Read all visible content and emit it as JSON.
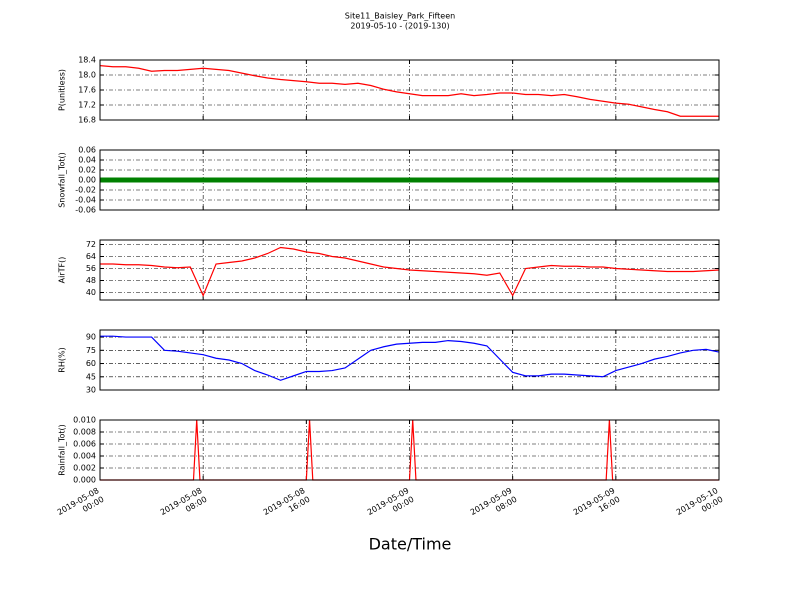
{
  "title": "Site11_Baisley_Park_Fifteen",
  "subtitle": "2019-05-10 - (2019-130)",
  "xlabel": "Date/Time",
  "chart_data": [
    {
      "type": "line",
      "ylabel": "P(unitless)",
      "color": "#ff0000",
      "grid": true,
      "x": [
        "2019-05-08 00:00",
        "2019-05-08 01:00",
        "2019-05-08 02:00",
        "2019-05-08 03:00",
        "2019-05-08 04:00",
        "2019-05-08 05:00",
        "2019-05-08 06:00",
        "2019-05-08 07:00",
        "2019-05-08 08:00",
        "2019-05-08 09:00",
        "2019-05-08 10:00",
        "2019-05-08 11:00",
        "2019-05-08 12:00",
        "2019-05-08 13:00",
        "2019-05-08 14:00",
        "2019-05-08 15:00",
        "2019-05-08 16:00",
        "2019-05-08 17:00",
        "2019-05-08 18:00",
        "2019-05-08 19:00",
        "2019-05-08 20:00",
        "2019-05-08 21:00",
        "2019-05-08 22:00",
        "2019-05-08 23:00",
        "2019-05-09 00:00",
        "2019-05-09 01:00",
        "2019-05-09 02:00",
        "2019-05-09 03:00",
        "2019-05-09 04:00",
        "2019-05-09 05:00",
        "2019-05-09 06:00",
        "2019-05-09 07:00",
        "2019-05-09 08:00",
        "2019-05-09 09:00",
        "2019-05-09 10:00",
        "2019-05-09 11:00",
        "2019-05-09 12:00",
        "2019-05-09 13:00",
        "2019-05-09 14:00",
        "2019-05-09 15:00",
        "2019-05-09 16:00",
        "2019-05-09 17:00",
        "2019-05-09 18:00",
        "2019-05-09 19:00",
        "2019-05-09 20:00",
        "2019-05-09 21:00",
        "2019-05-09 22:00",
        "2019-05-09 23:00",
        "2019-05-10 00:00"
      ],
      "values": [
        18.25,
        18.22,
        18.22,
        18.18,
        18.1,
        18.12,
        18.12,
        18.15,
        18.18,
        18.15,
        18.12,
        18.05,
        17.98,
        17.92,
        17.88,
        17.85,
        17.82,
        17.78,
        17.78,
        17.75,
        17.78,
        17.72,
        17.62,
        17.55,
        17.5,
        17.45,
        17.45,
        17.45,
        17.5,
        17.45,
        17.48,
        17.52,
        17.52,
        17.48,
        17.48,
        17.45,
        17.48,
        17.42,
        17.35,
        17.3,
        17.25,
        17.22,
        17.15,
        17.08,
        17.02,
        16.9,
        16.9,
        16.9,
        16.9
      ],
      "xlim": [
        "2019-05-08 00:00",
        "2019-05-10 00:00"
      ],
      "xticks": [
        "2019-05-08 00:00",
        "2019-05-08 08:00",
        "2019-05-08 16:00",
        "2019-05-09 00:00",
        "2019-05-09 08:00",
        "2019-05-09 16:00",
        "2019-05-10 00:00"
      ],
      "ylim": [
        16.8,
        18.4
      ],
      "yticks": [
        16.8,
        17.2,
        17.6,
        {
          "value": 18,
          "label": "18.0"
        },
        18.4
      ]
    },
    {
      "type": "line",
      "ylabel": "Snowfall_Tot()",
      "color": "#008000",
      "linewidth": 5,
      "grid": true,
      "x": [
        "2019-05-08 00:00",
        "2019-05-08 01:00",
        "2019-05-08 02:00",
        "2019-05-08 03:00",
        "2019-05-08 04:00",
        "2019-05-08 05:00",
        "2019-05-08 06:00",
        "2019-05-08 07:00",
        "2019-05-08 08:00",
        "2019-05-08 09:00",
        "2019-05-08 10:00",
        "2019-05-08 11:00",
        "2019-05-08 12:00",
        "2019-05-08 13:00",
        "2019-05-08 14:00",
        "2019-05-08 15:00",
        "2019-05-08 16:00",
        "2019-05-08 17:00",
        "2019-05-08 18:00",
        "2019-05-08 19:00",
        "2019-05-08 20:00",
        "2019-05-08 21:00",
        "2019-05-08 22:00",
        "2019-05-08 23:00",
        "2019-05-09 00:00",
        "2019-05-09 01:00",
        "2019-05-09 02:00",
        "2019-05-09 03:00",
        "2019-05-09 04:00",
        "2019-05-09 05:00",
        "2019-05-09 06:00",
        "2019-05-09 07:00",
        "2019-05-09 08:00",
        "2019-05-09 09:00",
        "2019-05-09 10:00",
        "2019-05-09 11:00",
        "2019-05-09 12:00",
        "2019-05-09 13:00",
        "2019-05-09 14:00",
        "2019-05-09 15:00",
        "2019-05-09 16:00",
        "2019-05-09 17:00",
        "2019-05-09 18:00",
        "2019-05-09 19:00",
        "2019-05-09 20:00",
        "2019-05-09 21:00",
        "2019-05-09 22:00",
        "2019-05-09 23:00",
        "2019-05-10 00:00"
      ],
      "values": [
        0,
        0,
        0,
        0,
        0,
        0,
        0,
        0,
        0,
        0,
        0,
        0,
        0,
        0,
        0,
        0,
        0,
        0,
        0,
        0,
        0,
        0,
        0,
        0,
        0,
        0,
        0,
        0,
        0,
        0,
        0,
        0,
        0,
        0,
        0,
        0,
        0,
        0,
        0,
        0,
        0,
        0,
        0,
        0,
        0,
        0,
        0,
        0,
        0
      ],
      "xlim": [
        "2019-05-08 00:00",
        "2019-05-10 00:00"
      ],
      "xticks": [
        "2019-05-08 00:00",
        "2019-05-08 08:00",
        "2019-05-08 16:00",
        "2019-05-09 00:00",
        "2019-05-09 08:00",
        "2019-05-09 16:00",
        "2019-05-10 00:00"
      ],
      "ylim": [
        -0.06,
        0.06
      ],
      "yticks": [
        -0.06,
        -0.04,
        -0.02,
        {
          "value": 0,
          "label": "0.00"
        },
        0.02,
        0.04,
        0.06
      ]
    },
    {
      "type": "line",
      "ylabel": "AirTF()",
      "color": "#ff0000",
      "grid": true,
      "x": [
        "2019-05-08 00:00",
        "2019-05-08 01:00",
        "2019-05-08 02:00",
        "2019-05-08 03:00",
        "2019-05-08 04:00",
        "2019-05-08 05:00",
        "2019-05-08 06:00",
        "2019-05-08 07:00",
        "2019-05-08 08:00",
        "2019-05-08 09:00",
        "2019-05-08 10:00",
        "2019-05-08 11:00",
        "2019-05-08 12:00",
        "2019-05-08 13:00",
        "2019-05-08 14:00",
        "2019-05-08 15:00",
        "2019-05-08 16:00",
        "2019-05-08 17:00",
        "2019-05-08 18:00",
        "2019-05-08 19:00",
        "2019-05-08 20:00",
        "2019-05-08 21:00",
        "2019-05-08 22:00",
        "2019-05-08 23:00",
        "2019-05-09 00:00",
        "2019-05-09 01:00",
        "2019-05-09 02:00",
        "2019-05-09 03:00",
        "2019-05-09 04:00",
        "2019-05-09 05:00",
        "2019-05-09 06:00",
        "2019-05-09 07:00",
        "2019-05-09 08:00",
        "2019-05-09 09:00",
        "2019-05-09 10:00",
        "2019-05-09 11:00",
        "2019-05-09 12:00",
        "2019-05-09 13:00",
        "2019-05-09 14:00",
        "2019-05-09 15:00",
        "2019-05-09 16:00",
        "2019-05-09 17:00",
        "2019-05-09 18:00",
        "2019-05-09 19:00",
        "2019-05-09 20:00",
        "2019-05-09 21:00",
        "2019-05-09 22:00",
        "2019-05-09 23:00",
        "2019-05-10 00:00"
      ],
      "values": [
        59,
        59,
        58.5,
        58.5,
        58,
        57,
        56.5,
        57,
        38,
        59,
        60,
        61,
        63,
        66,
        70,
        69,
        67,
        66,
        64,
        63,
        61,
        59,
        57,
        56,
        55,
        54.5,
        54,
        53.5,
        53,
        52.5,
        51.5,
        53,
        38,
        56,
        57,
        58,
        57.5,
        57.5,
        57,
        57,
        56,
        55.5,
        55,
        54.5,
        54,
        54,
        54,
        54.5,
        55
      ],
      "xlim": [
        "2019-05-08 00:00",
        "2019-05-10 00:00"
      ],
      "xticks": [
        "2019-05-08 00:00",
        "2019-05-08 08:00",
        "2019-05-08 16:00",
        "2019-05-09 00:00",
        "2019-05-09 08:00",
        "2019-05-09 16:00",
        "2019-05-10 00:00"
      ],
      "ylim": [
        35,
        75
      ],
      "yticks": [
        40,
        48,
        56,
        64,
        72
      ]
    },
    {
      "type": "line",
      "ylabel": "RH(%)",
      "color": "#0000ff",
      "grid": true,
      "x": [
        "2019-05-08 00:00",
        "2019-05-08 01:00",
        "2019-05-08 02:00",
        "2019-05-08 03:00",
        "2019-05-08 04:00",
        "2019-05-08 05:00",
        "2019-05-08 06:00",
        "2019-05-08 07:00",
        "2019-05-08 08:00",
        "2019-05-08 09:00",
        "2019-05-08 10:00",
        "2019-05-08 11:00",
        "2019-05-08 12:00",
        "2019-05-08 13:00",
        "2019-05-08 14:00",
        "2019-05-08 15:00",
        "2019-05-08 16:00",
        "2019-05-08 17:00",
        "2019-05-08 18:00",
        "2019-05-08 19:00",
        "2019-05-08 20:00",
        "2019-05-08 21:00",
        "2019-05-08 22:00",
        "2019-05-08 23:00",
        "2019-05-09 00:00",
        "2019-05-09 01:00",
        "2019-05-09 02:00",
        "2019-05-09 03:00",
        "2019-05-09 04:00",
        "2019-05-09 05:00",
        "2019-05-09 06:00",
        "2019-05-09 07:00",
        "2019-05-09 08:00",
        "2019-05-09 09:00",
        "2019-05-09 10:00",
        "2019-05-09 11:00",
        "2019-05-09 12:00",
        "2019-05-09 13:00",
        "2019-05-09 14:00",
        "2019-05-09 15:00",
        "2019-05-09 16:00",
        "2019-05-09 17:00",
        "2019-05-09 18:00",
        "2019-05-09 19:00",
        "2019-05-09 20:00",
        "2019-05-09 21:00",
        "2019-05-09 22:00",
        "2019-05-09 23:00",
        "2019-05-10 00:00"
      ],
      "values": [
        91,
        91,
        90,
        90,
        90,
        75,
        74,
        72,
        70,
        66,
        64,
        60,
        52,
        47,
        41,
        46,
        51,
        51,
        52,
        55,
        65,
        75,
        79,
        82,
        83,
        84,
        84,
        86,
        85,
        83,
        80,
        65,
        50,
        46,
        46,
        48,
        48,
        47,
        46,
        45,
        52,
        56,
        60,
        65,
        68,
        72,
        75,
        76,
        73
      ],
      "xlim": [
        "2019-05-08 00:00",
        "2019-05-10 00:00"
      ],
      "xticks": [
        "2019-05-08 00:00",
        "2019-05-08 08:00",
        "2019-05-08 16:00",
        "2019-05-09 00:00",
        "2019-05-09 08:00",
        "2019-05-09 16:00",
        "2019-05-10 00:00"
      ],
      "ylim": [
        30,
        98
      ],
      "yticks": [
        30,
        45,
        60,
        75,
        90
      ]
    },
    {
      "type": "line",
      "ylabel": "Rainfall_Tot()",
      "color": "#ff0000",
      "grid": true,
      "x": [
        "2019-05-08 00:00",
        "2019-05-08 07:15",
        "2019-05-08 07:30",
        "2019-05-08 07:45",
        "2019-05-08 16:00",
        "2019-05-08 16:15",
        "2019-05-08 16:30",
        "2019-05-09 00:00",
        "2019-05-09 00:15",
        "2019-05-09 00:30",
        "2019-05-09 15:15",
        "2019-05-09 15:30",
        "2019-05-09 15:45",
        "2019-05-10 00:00"
      ],
      "values": [
        0,
        0,
        0.01,
        0,
        0,
        0.01,
        0,
        0,
        0.01,
        0,
        0,
        0.01,
        0,
        0
      ],
      "xlim": [
        "2019-05-08 00:00",
        "2019-05-10 00:00"
      ],
      "xticks": [
        "2019-05-08 00:00",
        "2019-05-08 08:00",
        "2019-05-08 16:00",
        "2019-05-09 00:00",
        "2019-05-09 08:00",
        "2019-05-09 16:00",
        "2019-05-10 00:00"
      ],
      "ylim": [
        0,
        0.01
      ],
      "yticks": [
        {
          "value": 0,
          "label": "0.000"
        },
        {
          "value": 0.002,
          "label": "0.002"
        },
        {
          "value": 0.004,
          "label": "0.004"
        },
        {
          "value": 0.006,
          "label": "0.006"
        },
        {
          "value": 0.008,
          "label": "0.008"
        },
        {
          "value": 0.01,
          "label": "0.010"
        }
      ]
    }
  ]
}
